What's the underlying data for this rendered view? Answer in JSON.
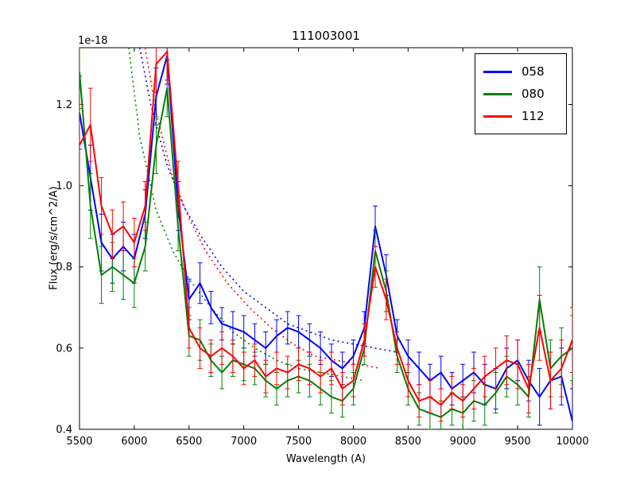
{
  "chart_data": {
    "type": "line",
    "title": "111003001",
    "xlabel": "Wavelength (A)",
    "ylabel": "Flux (erg/s/cm^2/A)",
    "y_offset_label": "1e-18",
    "xlim": [
      5500,
      10000
    ],
    "ylim": [
      0.4,
      1.34
    ],
    "xticks": [
      5500,
      6000,
      6500,
      7000,
      7500,
      8000,
      8500,
      9000,
      9500,
      10000
    ],
    "xtick_labels": [
      "5500",
      "6000",
      "6500",
      "7000",
      "7500",
      "8000",
      "8500",
      "9000",
      "9500",
      "10000"
    ],
    "yticks": [
      0.4,
      0.6,
      0.8,
      1.0,
      1.2
    ],
    "ytick_labels": [
      "0.4",
      "0.6",
      "0.8",
      "1.0",
      "1.2"
    ],
    "grid": false,
    "legend": {
      "position": "upper right",
      "entries": [
        "058",
        "080",
        "112"
      ]
    },
    "x": [
      5500,
      5600,
      5700,
      5800,
      5900,
      6000,
      6100,
      6200,
      6300,
      6400,
      6500,
      6600,
      6700,
      6800,
      6900,
      7000,
      7100,
      7200,
      7300,
      7400,
      7500,
      7600,
      7700,
      7800,
      7900,
      8000,
      8100,
      8200,
      8300,
      8400,
      8500,
      8600,
      8700,
      8800,
      8900,
      9000,
      9100,
      9200,
      9300,
      9400,
      9500,
      9600,
      9700,
      9800,
      9900,
      10000
    ],
    "series": [
      {
        "name": "058",
        "color": "#0000ff",
        "values": [
          1.18,
          1.02,
          0.86,
          0.82,
          0.85,
          0.82,
          0.93,
          1.22,
          1.32,
          0.95,
          0.72,
          0.76,
          0.7,
          0.66,
          0.65,
          0.64,
          0.62,
          0.6,
          0.63,
          0.65,
          0.64,
          0.62,
          0.6,
          0.57,
          0.55,
          0.58,
          0.65,
          0.9,
          0.78,
          0.63,
          0.58,
          0.55,
          0.52,
          0.54,
          0.5,
          0.52,
          0.54,
          0.51,
          0.5,
          0.55,
          0.57,
          0.52,
          0.48,
          0.52,
          0.53,
          0.42
        ],
        "err": [
          0.09,
          0.08,
          0.07,
          0.06,
          0.06,
          0.06,
          0.06,
          0.07,
          0.07,
          0.06,
          0.05,
          0.05,
          0.04,
          0.04,
          0.04,
          0.04,
          0.04,
          0.04,
          0.04,
          0.04,
          0.04,
          0.04,
          0.04,
          0.04,
          0.04,
          0.04,
          0.04,
          0.05,
          0.05,
          0.04,
          0.04,
          0.04,
          0.04,
          0.04,
          0.04,
          0.04,
          0.05,
          0.05,
          0.05,
          0.05,
          0.05,
          0.05,
          0.07,
          0.07,
          0.07,
          0.08
        ]
      },
      {
        "name": "080",
        "color": "#008000",
        "values": [
          1.28,
          0.95,
          0.78,
          0.8,
          0.78,
          0.76,
          0.85,
          1.1,
          1.24,
          0.9,
          0.63,
          0.62,
          0.57,
          0.54,
          0.57,
          0.56,
          0.55,
          0.52,
          0.5,
          0.52,
          0.53,
          0.52,
          0.5,
          0.48,
          0.47,
          0.5,
          0.6,
          0.84,
          0.74,
          0.58,
          0.5,
          0.45,
          0.44,
          0.43,
          0.45,
          0.44,
          0.47,
          0.46,
          0.49,
          0.53,
          0.51,
          0.48,
          0.72,
          0.55,
          0.58,
          0.6
        ],
        "err": [
          0.09,
          0.08,
          0.07,
          0.06,
          0.06,
          0.06,
          0.06,
          0.07,
          0.07,
          0.06,
          0.05,
          0.05,
          0.04,
          0.04,
          0.04,
          0.04,
          0.04,
          0.04,
          0.04,
          0.04,
          0.04,
          0.04,
          0.04,
          0.04,
          0.04,
          0.04,
          0.04,
          0.05,
          0.05,
          0.04,
          0.04,
          0.04,
          0.04,
          0.04,
          0.04,
          0.04,
          0.05,
          0.05,
          0.05,
          0.05,
          0.05,
          0.05,
          0.08,
          0.07,
          0.07,
          0.08
        ]
      },
      {
        "name": "112",
        "color": "#ff0000",
        "values": [
          1.1,
          1.15,
          0.95,
          0.88,
          0.9,
          0.86,
          0.95,
          1.3,
          1.33,
          1.0,
          0.65,
          0.6,
          0.58,
          0.6,
          0.58,
          0.55,
          0.57,
          0.53,
          0.55,
          0.54,
          0.56,
          0.55,
          0.53,
          0.55,
          0.5,
          0.52,
          0.62,
          0.8,
          0.72,
          0.6,
          0.52,
          0.47,
          0.48,
          0.46,
          0.49,
          0.47,
          0.5,
          0.53,
          0.55,
          0.57,
          0.56,
          0.5,
          0.65,
          0.52,
          0.55,
          0.62
        ],
        "err": [
          0.1,
          0.09,
          0.07,
          0.06,
          0.06,
          0.06,
          0.06,
          0.07,
          0.07,
          0.06,
          0.05,
          0.05,
          0.04,
          0.04,
          0.04,
          0.04,
          0.04,
          0.04,
          0.04,
          0.04,
          0.04,
          0.04,
          0.04,
          0.04,
          0.04,
          0.04,
          0.04,
          0.05,
          0.05,
          0.04,
          0.04,
          0.04,
          0.04,
          0.04,
          0.04,
          0.04,
          0.05,
          0.05,
          0.05,
          0.06,
          0.06,
          0.06,
          0.08,
          0.07,
          0.07,
          0.08
        ]
      }
    ],
    "fits": [
      {
        "name": "058",
        "color": "#0000ff",
        "style": "dotted",
        "x": [
          6050,
          6150,
          6300,
          6450,
          6600,
          6800,
          7000,
          7200,
          7400,
          7600,
          7800,
          8000,
          8200,
          8400
        ],
        "y": [
          1.34,
          1.2,
          1.05,
          0.95,
          0.88,
          0.8,
          0.74,
          0.7,
          0.66,
          0.64,
          0.62,
          0.61,
          0.6,
          0.59
        ]
      },
      {
        "name": "080",
        "color": "#008000",
        "style": "dotted",
        "x": [
          5950,
          6050,
          6200,
          6350,
          6500,
          6700,
          6900,
          7100,
          7300,
          7500,
          7700,
          7900,
          8100
        ],
        "y": [
          1.34,
          1.12,
          0.94,
          0.84,
          0.77,
          0.7,
          0.64,
          0.6,
          0.57,
          0.55,
          0.54,
          0.53,
          0.52
        ]
      },
      {
        "name": "112",
        "color": "#ff0000",
        "style": "dotted",
        "x": [
          6100,
          6200,
          6350,
          6500,
          6650,
          6850,
          7050,
          7250,
          7450,
          7650,
          7850,
          8050,
          8250
        ],
        "y": [
          1.34,
          1.18,
          1.02,
          0.92,
          0.84,
          0.76,
          0.7,
          0.65,
          0.61,
          0.58,
          0.57,
          0.56,
          0.55
        ]
      }
    ]
  }
}
